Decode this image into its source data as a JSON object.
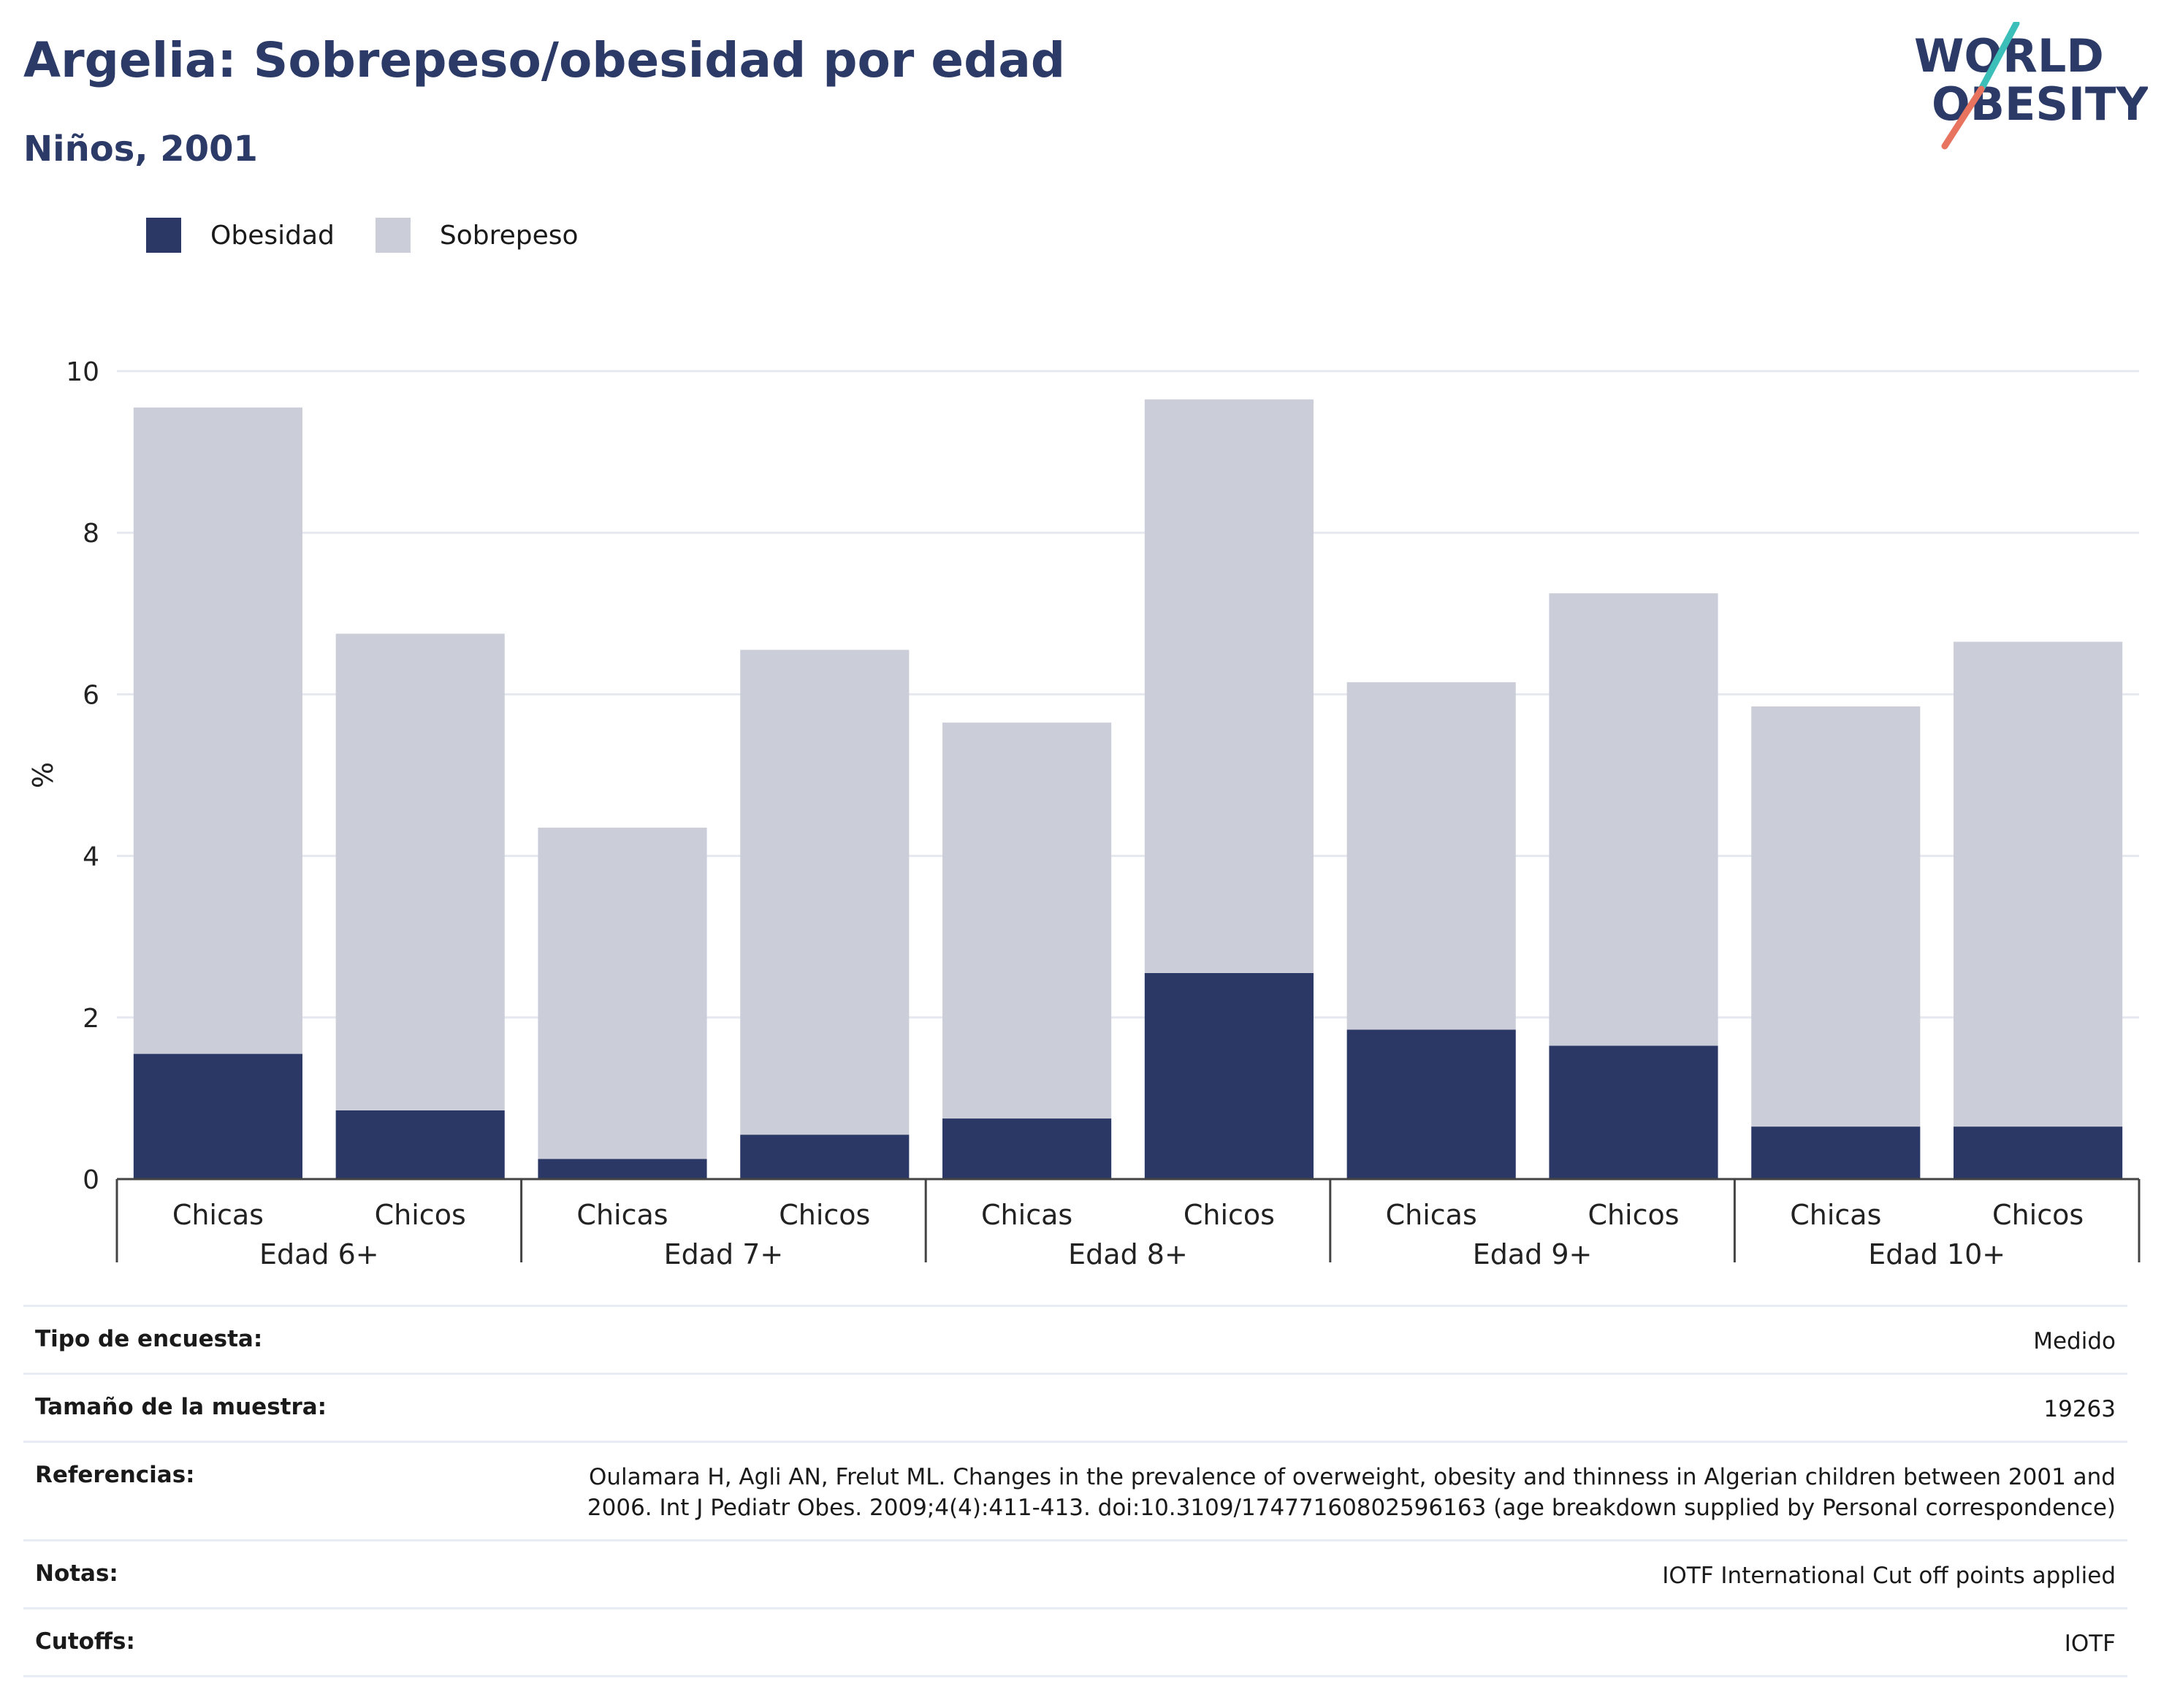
{
  "header": {
    "title": "Argelia: Sobrepeso/obesidad por edad",
    "subtitle": "Niños, 2001"
  },
  "logo": {
    "line1": "WORLD",
    "line2": "OBESITY",
    "colors": {
      "text": "#2b3a67",
      "slash_top": "#3cbfb8",
      "slash_bottom": "#e8735f"
    }
  },
  "legend": [
    {
      "label": "Obesidad",
      "color": "#2b3765"
    },
    {
      "label": "Sobrepeso",
      "color": "#cbcdd9"
    }
  ],
  "chart_data": {
    "type": "bar",
    "stacked": true,
    "ylabel": "%",
    "ylim": [
      0,
      10
    ],
    "yticks": [
      0,
      2,
      4,
      6,
      8,
      10
    ],
    "grid": true,
    "legend_position": "top-left",
    "groups": [
      "Edad 6+",
      "Edad 7+",
      "Edad 8+",
      "Edad 9+",
      "Edad 10+"
    ],
    "categories": [
      "Chicas",
      "Chicos",
      "Chicas",
      "Chicos",
      "Chicas",
      "Chicos",
      "Chicas",
      "Chicos",
      "Chicas",
      "Chicos"
    ],
    "series": [
      {
        "name": "Obesidad",
        "color": "#2b3765",
        "values": [
          1.55,
          0.85,
          0.25,
          0.55,
          0.75,
          2.55,
          1.85,
          1.65,
          0.65,
          0.65
        ]
      },
      {
        "name": "Sobrepeso",
        "color": "#cbcdd9",
        "values": [
          8.0,
          5.9,
          4.1,
          6.0,
          4.9,
          7.1,
          4.3,
          5.6,
          5.2,
          6.0
        ]
      }
    ]
  },
  "info": [
    {
      "label": "Tipo de encuesta:",
      "value": "Medido"
    },
    {
      "label": "Tamaño de la muestra:",
      "value": "19263"
    },
    {
      "label": "Referencias:",
      "value": "Oulamara H, Agli AN, Frelut ML. Changes in the prevalence of overweight, obesity and thinness in Algerian children between 2001 and 2006. Int J Pediatr Obes. 2009;4(4):411-413. doi:10.3109/17477160802596163 (age breakdown supplied by Personal correspondence)"
    },
    {
      "label": "Notas:",
      "value": "IOTF International Cut off points applied"
    },
    {
      "label": "Cutoffs:",
      "value": "IOTF"
    }
  ]
}
